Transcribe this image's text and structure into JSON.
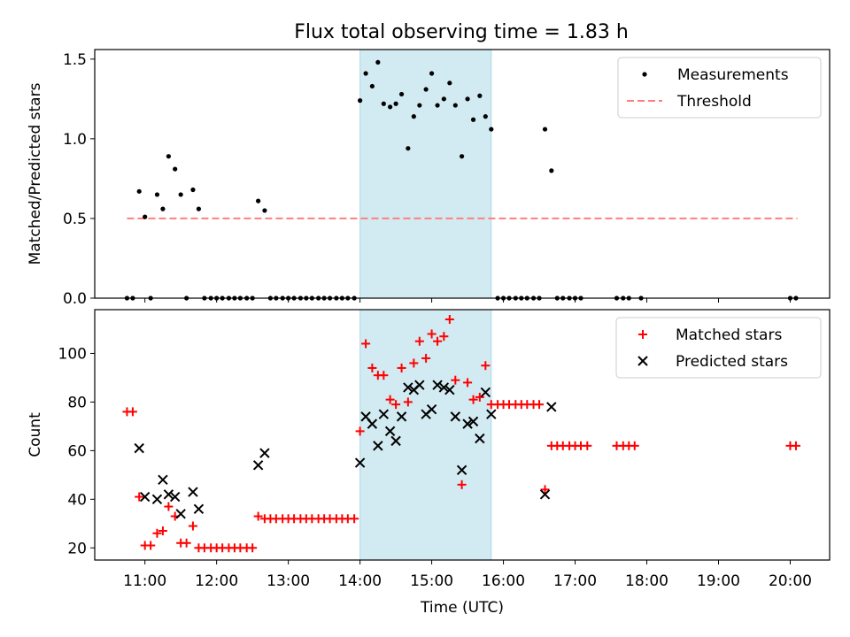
{
  "title": "Flux total observing time = 1.83 h",
  "colors": {
    "measurement": "#000000",
    "threshold": "#ff7f7f",
    "matched": "#ff0000",
    "predicted": "#000000",
    "shade": "#add8e6"
  },
  "chart_data": [
    {
      "type": "scatter",
      "ylabel": "Matched/Predicted stars",
      "xlim": [
        10.3,
        20.55
      ],
      "ylim": [
        0,
        1.56
      ],
      "yticks": [
        0.0,
        0.5,
        1.0,
        1.5
      ],
      "ytick_labels": [
        "0.0",
        "0.5",
        "1.0",
        "1.5"
      ],
      "shaded_region": [
        14.0,
        15.83
      ],
      "legend": {
        "position": "top-right",
        "entries": [
          "Measurements",
          "Threshold"
        ]
      },
      "threshold": {
        "name": "Threshold",
        "value": 0.5,
        "x_range": [
          10.75,
          20.1
        ]
      },
      "series": [
        {
          "name": "Measurements",
          "points": [
            [
              10.75,
              0.0
            ],
            [
              10.83,
              0.0
            ],
            [
              10.92,
              0.67
            ],
            [
              11.0,
              0.51
            ],
            [
              11.08,
              0.0
            ],
            [
              11.17,
              0.65
            ],
            [
              11.25,
              0.56
            ],
            [
              11.33,
              0.89
            ],
            [
              11.42,
              0.81
            ],
            [
              11.5,
              0.65
            ],
            [
              11.58,
              0.0
            ],
            [
              11.67,
              0.68
            ],
            [
              11.75,
              0.56
            ],
            [
              11.83,
              0.0
            ],
            [
              11.92,
              0.0
            ],
            [
              12.0,
              0.0
            ],
            [
              12.08,
              0.0
            ],
            [
              12.17,
              0.0
            ],
            [
              12.25,
              0.0
            ],
            [
              12.33,
              0.0
            ],
            [
              12.42,
              0.0
            ],
            [
              12.5,
              0.0
            ],
            [
              12.58,
              0.61
            ],
            [
              12.67,
              0.55
            ],
            [
              12.75,
              0.0
            ],
            [
              12.83,
              0.0
            ],
            [
              12.92,
              0.0
            ],
            [
              13.0,
              0.0
            ],
            [
              13.08,
              0.0
            ],
            [
              13.17,
              0.0
            ],
            [
              13.25,
              0.0
            ],
            [
              13.33,
              0.0
            ],
            [
              13.42,
              0.0
            ],
            [
              13.5,
              0.0
            ],
            [
              13.58,
              0.0
            ],
            [
              13.67,
              0.0
            ],
            [
              13.75,
              0.0
            ],
            [
              13.83,
              0.0
            ],
            [
              13.92,
              0.0
            ],
            [
              14.0,
              1.24
            ],
            [
              14.08,
              1.41
            ],
            [
              14.17,
              1.33
            ],
            [
              14.25,
              1.48
            ],
            [
              14.33,
              1.22
            ],
            [
              14.42,
              1.2
            ],
            [
              14.5,
              1.22
            ],
            [
              14.58,
              1.28
            ],
            [
              14.67,
              0.94
            ],
            [
              14.75,
              1.14
            ],
            [
              14.83,
              1.21
            ],
            [
              14.92,
              1.31
            ],
            [
              15.0,
              1.41
            ],
            [
              15.08,
              1.21
            ],
            [
              15.17,
              1.25
            ],
            [
              15.25,
              1.35
            ],
            [
              15.33,
              1.21
            ],
            [
              15.42,
              0.89
            ],
            [
              15.5,
              1.25
            ],
            [
              15.58,
              1.12
            ],
            [
              15.67,
              1.27
            ],
            [
              15.75,
              1.14
            ],
            [
              15.83,
              1.06
            ],
            [
              15.92,
              0.0
            ],
            [
              16.0,
              0.0
            ],
            [
              16.08,
              0.0
            ],
            [
              16.17,
              0.0
            ],
            [
              16.25,
              0.0
            ],
            [
              16.33,
              0.0
            ],
            [
              16.42,
              0.0
            ],
            [
              16.5,
              0.0
            ],
            [
              16.58,
              1.06
            ],
            [
              16.67,
              0.8
            ],
            [
              16.75,
              0.0
            ],
            [
              16.83,
              0.0
            ],
            [
              16.92,
              0.0
            ],
            [
              17.0,
              0.0
            ],
            [
              17.08,
              0.0
            ],
            [
              17.58,
              0.0
            ],
            [
              17.67,
              0.0
            ],
            [
              17.75,
              0.0
            ],
            [
              17.92,
              0.0
            ],
            [
              20.0,
              0.0
            ],
            [
              20.08,
              0.0
            ]
          ]
        }
      ]
    },
    {
      "type": "scatter",
      "title": "",
      "ylabel": "Count",
      "xlabel": "Time (UTC)",
      "xlim": [
        10.3,
        20.55
      ],
      "ylim": [
        15,
        118
      ],
      "yticks": [
        20,
        40,
        60,
        80,
        100
      ],
      "ytick_labels": [
        "20",
        "40",
        "60",
        "80",
        "100"
      ],
      "xticks": [
        11,
        12,
        13,
        14,
        15,
        16,
        17,
        18,
        19,
        20
      ],
      "xtick_labels": [
        "11:00",
        "12:00",
        "13:00",
        "14:00",
        "15:00",
        "16:00",
        "17:00",
        "18:00",
        "19:00",
        "20:00"
      ],
      "shaded_region": [
        14.0,
        15.83
      ],
      "legend": {
        "position": "top-right",
        "entries": [
          "Matched stars",
          "Predicted stars"
        ]
      },
      "series": [
        {
          "name": "Matched stars",
          "marker": "+",
          "points": [
            [
              10.75,
              76
            ],
            [
              10.83,
              76
            ],
            [
              10.92,
              41
            ],
            [
              11.0,
              21
            ],
            [
              11.08,
              21
            ],
            [
              11.17,
              26
            ],
            [
              11.25,
              27
            ],
            [
              11.33,
              37
            ],
            [
              11.42,
              33
            ],
            [
              11.5,
              22
            ],
            [
              11.58,
              22
            ],
            [
              11.67,
              29
            ],
            [
              11.75,
              20
            ],
            [
              11.83,
              20
            ],
            [
              11.92,
              20
            ],
            [
              12.0,
              20
            ],
            [
              12.08,
              20
            ],
            [
              12.17,
              20
            ],
            [
              12.25,
              20
            ],
            [
              12.33,
              20
            ],
            [
              12.42,
              20
            ],
            [
              12.5,
              20
            ],
            [
              12.58,
              33
            ],
            [
              12.67,
              32
            ],
            [
              12.75,
              32
            ],
            [
              12.83,
              32
            ],
            [
              12.92,
              32
            ],
            [
              13.0,
              32
            ],
            [
              13.08,
              32
            ],
            [
              13.17,
              32
            ],
            [
              13.25,
              32
            ],
            [
              13.33,
              32
            ],
            [
              13.42,
              32
            ],
            [
              13.5,
              32
            ],
            [
              13.58,
              32
            ],
            [
              13.67,
              32
            ],
            [
              13.75,
              32
            ],
            [
              13.83,
              32
            ],
            [
              13.92,
              32
            ],
            [
              14.0,
              68
            ],
            [
              14.08,
              104
            ],
            [
              14.17,
              94
            ],
            [
              14.25,
              91
            ],
            [
              14.33,
              91
            ],
            [
              14.42,
              81
            ],
            [
              14.5,
              79
            ],
            [
              14.58,
              94
            ],
            [
              14.67,
              80
            ],
            [
              14.75,
              96
            ],
            [
              14.83,
              105
            ],
            [
              14.92,
              98
            ],
            [
              15.0,
              108
            ],
            [
              15.08,
              105
            ],
            [
              15.17,
              107
            ],
            [
              15.25,
              114
            ],
            [
              15.33,
              89
            ],
            [
              15.42,
              46
            ],
            [
              15.5,
              88
            ],
            [
              15.58,
              81
            ],
            [
              15.67,
              82
            ],
            [
              15.75,
              95
            ],
            [
              15.83,
              79
            ],
            [
              15.92,
              79
            ],
            [
              16.0,
              79
            ],
            [
              16.08,
              79
            ],
            [
              16.17,
              79
            ],
            [
              16.25,
              79
            ],
            [
              16.33,
              79
            ],
            [
              16.42,
              79
            ],
            [
              16.5,
              79
            ],
            [
              16.58,
              44
            ],
            [
              16.67,
              62
            ],
            [
              16.75,
              62
            ],
            [
              16.83,
              62
            ],
            [
              16.92,
              62
            ],
            [
              17.0,
              62
            ],
            [
              17.08,
              62
            ],
            [
              17.17,
              62
            ],
            [
              17.58,
              62
            ],
            [
              17.67,
              62
            ],
            [
              17.75,
              62
            ],
            [
              17.83,
              62
            ],
            [
              20.0,
              62
            ],
            [
              20.08,
              62
            ]
          ]
        },
        {
          "name": "Predicted stars",
          "marker": "x",
          "points": [
            [
              10.92,
              61
            ],
            [
              11.0,
              41
            ],
            [
              11.17,
              40
            ],
            [
              11.25,
              48
            ],
            [
              11.33,
              42
            ],
            [
              11.42,
              41
            ],
            [
              11.5,
              34
            ],
            [
              11.67,
              43
            ],
            [
              11.75,
              36
            ],
            [
              12.58,
              54
            ],
            [
              12.67,
              59
            ],
            [
              14.0,
              55
            ],
            [
              14.08,
              74
            ],
            [
              14.17,
              71
            ],
            [
              14.25,
              62
            ],
            [
              14.33,
              75
            ],
            [
              14.42,
              68
            ],
            [
              14.5,
              64
            ],
            [
              14.58,
              74
            ],
            [
              14.67,
              86
            ],
            [
              14.75,
              85
            ],
            [
              14.83,
              87
            ],
            [
              14.92,
              75
            ],
            [
              15.0,
              77
            ],
            [
              15.08,
              87
            ],
            [
              15.17,
              86
            ],
            [
              15.25,
              85
            ],
            [
              15.33,
              74
            ],
            [
              15.42,
              52
            ],
            [
              15.5,
              71
            ],
            [
              15.58,
              72
            ],
            [
              15.67,
              65
            ],
            [
              15.75,
              84
            ],
            [
              15.83,
              75
            ],
            [
              16.58,
              42
            ],
            [
              16.67,
              78
            ]
          ]
        }
      ]
    }
  ]
}
